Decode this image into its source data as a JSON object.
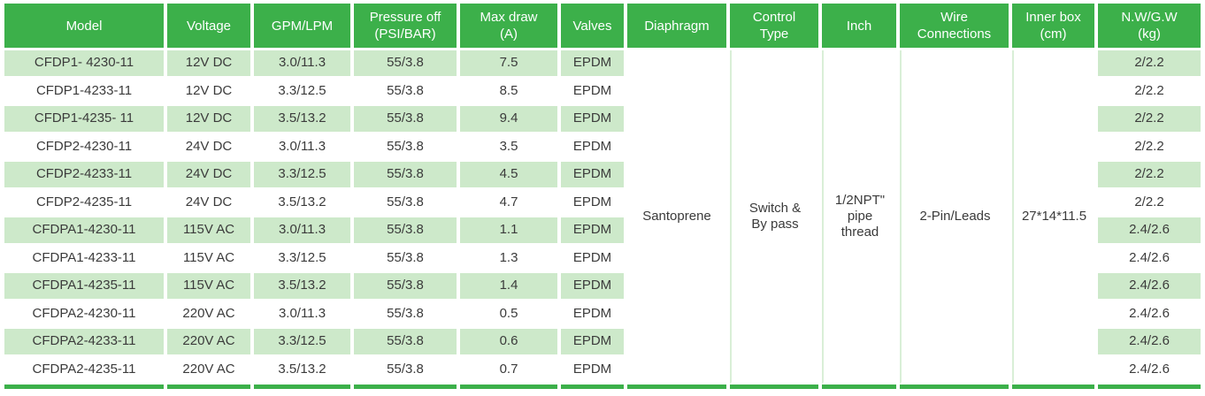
{
  "colors": {
    "header_green": "#3CB04A",
    "row_stripe_green": "#CDE9CA",
    "separator_light_green": "#D9EFD7",
    "body_text": "#3B3B3B",
    "header_text": "#FFFFFF"
  },
  "table": {
    "columns": [
      {
        "key": "model",
        "label": "Model"
      },
      {
        "key": "voltage",
        "label": "Voltage"
      },
      {
        "key": "gpm-lpm",
        "label": "GPM/LPM"
      },
      {
        "key": "pressure-off",
        "label": "Pressure off\n(PSI/BAR)"
      },
      {
        "key": "max-draw",
        "label": "Max draw\n(A)"
      },
      {
        "key": "valves",
        "label": "Valves"
      },
      {
        "key": "diaphragm",
        "label": "Diaphragm"
      },
      {
        "key": "control-type",
        "label": "Control\nType"
      },
      {
        "key": "inch",
        "label": "Inch"
      },
      {
        "key": "wire-connections",
        "label": "Wire\nConnections"
      },
      {
        "key": "inner-box",
        "label": "Inner box\n(cm)"
      },
      {
        "key": "nw-gw",
        "label": "N.W/G.W\n(kg)"
      }
    ],
    "merged": {
      "diaphragm": "Santoprene",
      "control_type": "Switch &\nBy pass",
      "inch": "1/2NPT\"\npipe\nthread",
      "wire_connections": "2-Pin/Leads",
      "inner_box": "27*14*11.5"
    },
    "rows": [
      [
        "CFDP1- 4230-11",
        "12V DC",
        "3.0/11.3",
        "55/3.8",
        "7.5",
        "EPDM",
        "2/2.2"
      ],
      [
        "CFDP1-4233-11",
        "12V DC",
        "3.3/12.5",
        "55/3.8",
        "8.5",
        "EPDM",
        "2/2.2"
      ],
      [
        "CFDP1-4235- 11",
        "12V DC",
        "3.5/13.2",
        "55/3.8",
        "9.4",
        "EPDM",
        "2/2.2"
      ],
      [
        "CFDP2-4230-11",
        "24V DC",
        "3.0/11.3",
        "55/3.8",
        "3.5",
        "EPDM",
        "2/2.2"
      ],
      [
        "CFDP2-4233-11",
        "24V DC",
        "3.3/12.5",
        "55/3.8",
        "4.5",
        "EPDM",
        "2/2.2"
      ],
      [
        "CFDP2-4235-11",
        "24V DC",
        "3.5/13.2",
        "55/3.8",
        "4.7",
        "EPDM",
        "2/2.2"
      ],
      [
        "CFDPA1-4230-11",
        "115V AC",
        "3.0/11.3",
        "55/3.8",
        "1.1",
        "EPDM",
        "2.4/2.6"
      ],
      [
        "CFDPA1-4233-11",
        "115V AC",
        "3.3/12.5",
        "55/3.8",
        "1.3",
        "EPDM",
        "2.4/2.6"
      ],
      [
        "CFDPA1-4235-11",
        "115V AC",
        "3.5/13.2",
        "55/3.8",
        "1.4",
        "EPDM",
        "2.4/2.6"
      ],
      [
        "CFDPA2-4230-11",
        "220V AC",
        "3.0/11.3",
        "55/3.8",
        "0.5",
        "EPDM",
        "2.4/2.6"
      ],
      [
        "CFDPA2-4233-11",
        "220V AC",
        "3.3/12.5",
        "55/3.8",
        "0.6",
        "EPDM",
        "2.4/2.6"
      ],
      [
        "CFDPA2-4235-11",
        "220V AC",
        "3.5/13.2",
        "55/3.8",
        "0.7",
        "EPDM",
        "2.4/2.6"
      ]
    ]
  }
}
